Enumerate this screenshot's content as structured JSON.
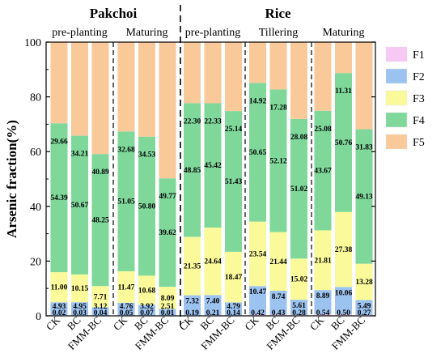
{
  "chart_data": {
    "type": "bar",
    "stacked": true,
    "ylabel": "Arsenic fraction(%)",
    "ylim": [
      0,
      100
    ],
    "yticks": [
      0,
      20,
      40,
      60,
      80,
      100
    ],
    "grid": false,
    "legend_position": "right",
    "series": [
      {
        "name": "F1",
        "color": "#f7c8f4"
      },
      {
        "name": "F2",
        "color": "#9cc3f0"
      },
      {
        "name": "F3",
        "color": "#fafa9a"
      },
      {
        "name": "F4",
        "color": "#7fd89a"
      },
      {
        "name": "F5",
        "color": "#f9c99a"
      }
    ],
    "crops": [
      {
        "name": "Pakchoi",
        "panels": [
          0,
          1
        ]
      },
      {
        "name": "Rice",
        "panels": [
          2,
          3,
          4
        ]
      }
    ],
    "panels": [
      {
        "stage": "pre-planting",
        "bars": [
          {
            "category": "CK",
            "values": [
              0.02,
              4.93,
              11.0,
              54.39,
              29.66
            ],
            "labels": [
              "0.02",
              "4.93",
              "11.00",
              "54.39",
              "29.66"
            ]
          },
          {
            "category": "BC",
            "values": [
              0.03,
              4.95,
              10.15,
              50.67,
              34.21
            ],
            "labels": [
              "0.03",
              "4.95",
              "10.15",
              "50.67",
              "34.21"
            ]
          },
          {
            "category": "FMM-BC",
            "values": [
              0.04,
              3.12,
              7.71,
              48.25,
              40.89
            ],
            "labels": [
              "0.04",
              "3.12",
              "7.71",
              "48.25",
              "40.89"
            ]
          }
        ]
      },
      {
        "stage": "Maturing",
        "bars": [
          {
            "category": "CK",
            "values": [
              0.05,
              4.76,
              11.47,
              51.05,
              32.68
            ],
            "labels": [
              "0.05",
              "4.76",
              "11.47",
              "51.05",
              "32.68"
            ]
          },
          {
            "category": "BC",
            "values": [
              0.07,
              3.92,
              10.68,
              50.8,
              34.53
            ],
            "labels": [
              "0.07",
              "3.92",
              "10.68",
              "50.80",
              "34.53"
            ]
          },
          {
            "category": "FMM-BC",
            "values": [
              0.01,
              2.51,
              8.09,
              39.62,
              49.77
            ],
            "labels": [
              "0.01",
              "2.51",
              "8.09",
              "39.62",
              "49.77"
            ]
          }
        ]
      },
      {
        "stage": "pre-planting",
        "bars": [
          {
            "category": "CK",
            "values": [
              0.19,
              7.32,
              21.35,
              48.85,
              22.3
            ],
            "labels": [
              "0.19",
              "7.32",
              "21.35",
              "48.85",
              "22.30"
            ]
          },
          {
            "category": "BC",
            "values": [
              0.21,
              7.4,
              24.64,
              45.42,
              22.33
            ],
            "labels": [
              "0.21",
              "7.40",
              "24.64",
              "45.42",
              "22.33"
            ]
          },
          {
            "category": "FMM-BC",
            "values": [
              0.14,
              4.79,
              18.47,
              51.43,
              25.14
            ],
            "labels": [
              "0.14",
              "4.79",
              "18.47",
              "51.43",
              "25.14"
            ]
          }
        ]
      },
      {
        "stage": "Tillering",
        "bars": [
          {
            "category": "CK",
            "values": [
              0.42,
              10.47,
              23.54,
              50.65,
              14.92
            ],
            "labels": [
              "0.42",
              "10.47",
              "23.54",
              "50.65",
              "14.92"
            ]
          },
          {
            "category": "BC",
            "values": [
              0.43,
              8.74,
              21.44,
              52.12,
              17.28
            ],
            "labels": [
              "0.43",
              "8.74",
              "21.44",
              "52.12",
              "17.28"
            ]
          },
          {
            "category": "FMM-BC",
            "values": [
              0.28,
              5.61,
              15.02,
              51.02,
              28.08
            ],
            "labels": [
              "0.28",
              "5.61",
              "15.02",
              "51.02",
              "28.08"
            ]
          }
        ]
      },
      {
        "stage": "Maturing",
        "bars": [
          {
            "category": "CK",
            "values": [
              0.54,
              8.89,
              21.81,
              43.67,
              25.08
            ],
            "labels": [
              "0.54",
              "8.89",
              "21.81",
              "43.67",
              "25.08"
            ]
          },
          {
            "category": "BC",
            "values": [
              0.5,
              10.06,
              27.38,
              50.76,
              11.31
            ],
            "labels": [
              "0.50",
              "10.06",
              "27.38",
              "50.76",
              "11.31"
            ]
          },
          {
            "category": "FMM-BC",
            "values": [
              0.27,
              5.49,
              13.28,
              49.13,
              31.83
            ],
            "labels": [
              "0.27",
              "5.49",
              "13.28",
              "49.13",
              "31.83"
            ]
          }
        ]
      }
    ]
  }
}
